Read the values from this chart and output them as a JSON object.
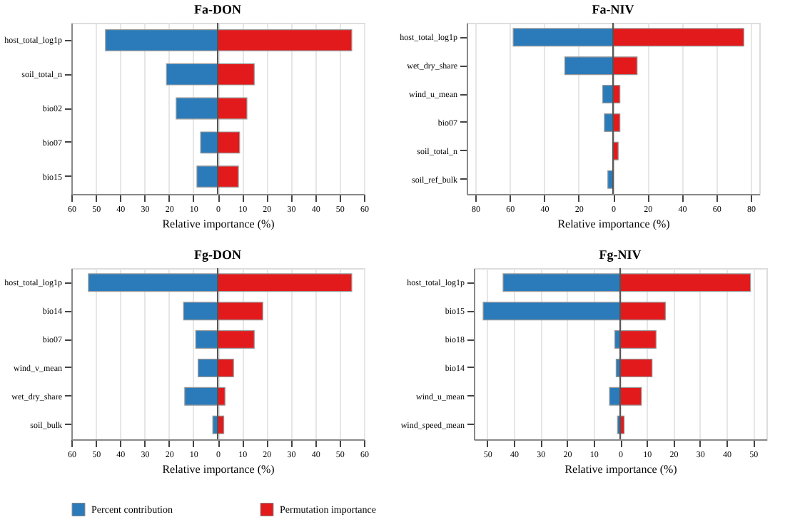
{
  "chart_data": [
    {
      "type": "bar",
      "orientation": "horizontal",
      "title": "Fa-DON",
      "xlabel": "Relative importance (%)",
      "categories": [
        "host_total_log1p",
        "soil_total_n",
        "bio02",
        "bio07",
        "bio15"
      ],
      "series": [
        {
          "name": "Percent contribution",
          "color": "#2b7bba",
          "values": [
            -46,
            -21,
            -17,
            -7,
            -8.5
          ]
        },
        {
          "name": "Permutation importance",
          "color": "#e31a1c",
          "values": [
            55,
            15,
            12,
            9,
            8.5
          ]
        }
      ],
      "xlim": [
        -60,
        60
      ],
      "xticks": [
        {
          "value": -60,
          "label": "60"
        },
        {
          "value": -50,
          "label": "50"
        },
        {
          "value": -40,
          "label": "40"
        },
        {
          "value": -30,
          "label": "30"
        },
        {
          "value": -20,
          "label": "20"
        },
        {
          "value": -10,
          "label": "10"
        },
        0,
        10,
        20,
        30,
        40,
        50,
        60
      ],
      "grid": "x",
      "ref_lines": [
        {
          "axis": "x",
          "value": 0
        }
      ],
      "legend": "bottom",
      "stacked": true
    },
    {
      "type": "bar",
      "orientation": "horizontal",
      "title": "Fa-NIV",
      "xlabel": "Relative importance (%)",
      "categories": [
        "host_total_log1p",
        "wet_dry_share",
        "wind_u_mean",
        "bio07",
        "soil_total_n",
        "soil_ref_bulk"
      ],
      "series": [
        {
          "name": "Percent contribution",
          "color": "#2b7bba",
          "values": [
            -58,
            -28,
            -6,
            -5,
            null,
            -3
          ]
        },
        {
          "name": "Permutation importance",
          "color": "#e31a1c",
          "values": [
            76,
            14,
            4,
            4,
            3,
            null
          ]
        }
      ],
      "xlim": [
        -85,
        85
      ],
      "xticks": [
        {
          "value": -80,
          "label": "80"
        },
        {
          "value": -60,
          "label": "60"
        },
        {
          "value": -40,
          "label": "40"
        },
        {
          "value": -20,
          "label": "20"
        },
        0,
        20,
        40,
        60,
        80
      ],
      "grid": "x",
      "ref_lines": [
        {
          "axis": "x",
          "value": 0
        }
      ],
      "legend": "bottom",
      "stacked": true
    },
    {
      "type": "bar",
      "orientation": "horizontal",
      "title": "Fg-DON",
      "xlabel": "Relative importance (%)",
      "categories": [
        "host_total_log1p",
        "bio14",
        "bio07",
        "wind_v_mean",
        "wet_dry_share",
        "soil_bulk"
      ],
      "series": [
        {
          "name": "Percent contribution",
          "color": "#2b7bba",
          "values": [
            -53,
            -14,
            -9,
            -8,
            -13.5,
            -2
          ]
        },
        {
          "name": "Permutation importance",
          "color": "#e31a1c",
          "values": [
            55,
            18.5,
            15,
            6.5,
            3,
            2.5
          ]
        }
      ],
      "xlim": [
        -60,
        60
      ],
      "xticks": [
        {
          "value": -60,
          "label": "60"
        },
        {
          "value": -50,
          "label": "50"
        },
        {
          "value": -40,
          "label": "40"
        },
        {
          "value": -30,
          "label": "30"
        },
        {
          "value": -20,
          "label": "20"
        },
        {
          "value": -10,
          "label": "10"
        },
        0,
        10,
        20,
        30,
        40,
        50,
        60
      ],
      "grid": "x",
      "ref_lines": [
        {
          "axis": "x",
          "value": 0
        }
      ],
      "legend": "bottom",
      "stacked": true
    },
    {
      "type": "bar",
      "orientation": "horizontal",
      "title": "Fg-NIV",
      "xlabel": "Relative importance (%)",
      "categories": [
        "host_total_log1p",
        "bio15",
        "bio18",
        "bio14",
        "wind_u_mean",
        "wind_speed_mean"
      ],
      "series": [
        {
          "name": "Percent contribution",
          "color": "#2b7bba",
          "values": [
            -44,
            -51.5,
            -2,
            -1.5,
            -4,
            -1
          ]
        },
        {
          "name": "Permutation importance",
          "color": "#e31a1c",
          "values": [
            49,
            17,
            13.5,
            12,
            8,
            1.5
          ]
        }
      ],
      "xlim": [
        -55,
        55
      ],
      "xticks": [
        {
          "value": -50,
          "label": "50"
        },
        {
          "value": -40,
          "label": "40"
        },
        {
          "value": -30,
          "label": "30"
        },
        {
          "value": -20,
          "label": "20"
        },
        {
          "value": -10,
          "label": "10"
        },
        0,
        10,
        20,
        30,
        40,
        50
      ],
      "grid": "x",
      "ref_lines": [
        {
          "axis": "x",
          "value": 0
        }
      ],
      "legend": "bottom",
      "stacked": true
    }
  ]
}
